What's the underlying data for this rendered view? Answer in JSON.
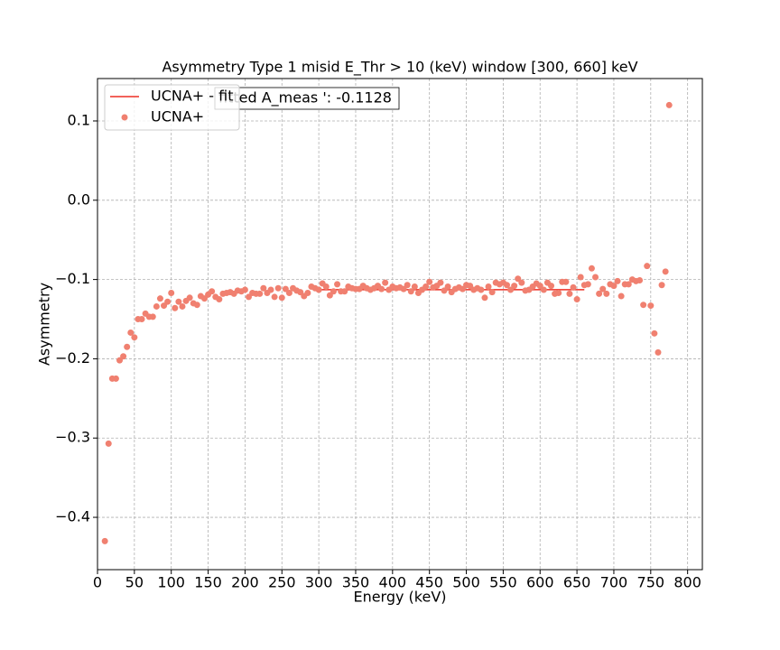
{
  "chart_data": {
    "type": "scatter",
    "title": "Asymmetry Type 1 misid  E_Thr > 10 (keV) window [300, 660] keV",
    "xlabel": "Energy (keV)",
    "ylabel": "Asymmetry",
    "annotation": "fitted A_meas ': -0.1128",
    "xlim": [
      0,
      820
    ],
    "ylim": [
      -0.466,
      0.1535
    ],
    "xticks": [
      0,
      50,
      100,
      150,
      200,
      250,
      300,
      350,
      400,
      450,
      500,
      550,
      600,
      650,
      700,
      750,
      800
    ],
    "yticks": [
      0.1,
      {
        "value": 0.0,
        "label": "0.0"
      },
      {
        "value": -0.1,
        "label": "−0.1"
      },
      {
        "value": -0.2,
        "label": "−0.2"
      },
      {
        "value": -0.3,
        "label": "−0.3"
      },
      {
        "value": -0.4,
        "label": "−0.4"
      }
    ],
    "grid": true,
    "legend": "upper left",
    "series": [
      {
        "name": "UCNA+ - fit",
        "type": "line",
        "color": "#ee2f24",
        "x": [
          300,
          660
        ],
        "values": [
          -0.1128,
          -0.1128
        ]
      },
      {
        "name": "UCNA+",
        "type": "scatter",
        "color": "#f08070",
        "x": [
          10,
          15,
          20,
          25,
          30,
          35,
          40,
          45,
          50,
          55,
          60,
          65,
          70,
          75,
          80,
          85,
          90,
          95,
          100,
          105,
          110,
          115,
          120,
          125,
          130,
          135,
          140,
          145,
          150,
          155,
          160,
          165,
          170,
          175,
          180,
          185,
          190,
          195,
          200,
          205,
          210,
          215,
          220,
          225,
          230,
          235,
          240,
          245,
          250,
          255,
          260,
          265,
          270,
          275,
          280,
          285,
          290,
          295,
          300,
          305,
          310,
          315,
          320,
          325,
          330,
          335,
          340,
          345,
          350,
          355,
          360,
          365,
          370,
          375,
          380,
          385,
          390,
          395,
          400,
          405,
          410,
          415,
          420,
          425,
          430,
          435,
          440,
          445,
          450,
          455,
          460,
          465,
          470,
          475,
          480,
          485,
          490,
          495,
          500,
          505,
          510,
          515,
          520,
          525,
          530,
          535,
          540,
          545,
          550,
          555,
          560,
          565,
          570,
          575,
          580,
          585,
          590,
          595,
          600,
          605,
          610,
          615,
          620,
          625,
          630,
          635,
          640,
          645,
          650,
          655,
          660,
          665,
          670,
          675,
          680,
          685,
          690,
          695,
          700,
          705,
          710,
          715,
          720,
          725,
          730,
          735,
          740,
          745,
          750,
          755,
          760,
          765,
          770,
          775
        ],
        "values": [
          -0.43,
          -0.307,
          -0.225,
          -0.225,
          -0.202,
          -0.197,
          -0.185,
          -0.167,
          -0.173,
          -0.15,
          -0.15,
          -0.143,
          -0.147,
          -0.147,
          -0.134,
          -0.124,
          -0.133,
          -0.128,
          -0.117,
          -0.136,
          -0.128,
          -0.134,
          -0.127,
          -0.123,
          -0.13,
          -0.132,
          -0.121,
          -0.124,
          -0.119,
          -0.115,
          -0.122,
          -0.125,
          -0.118,
          -0.117,
          -0.116,
          -0.118,
          -0.114,
          -0.115,
          -0.113,
          -0.122,
          -0.117,
          -0.118,
          -0.118,
          -0.111,
          -0.117,
          -0.113,
          -0.122,
          -0.111,
          -0.123,
          -0.112,
          -0.117,
          -0.111,
          -0.114,
          -0.116,
          -0.121,
          -0.117,
          -0.109,
          -0.111,
          -0.113,
          -0.105,
          -0.109,
          -0.12,
          -0.115,
          -0.106,
          -0.115,
          -0.115,
          -0.109,
          -0.111,
          -0.112,
          -0.112,
          -0.108,
          -0.111,
          -0.113,
          -0.111,
          -0.108,
          -0.112,
          -0.104,
          -0.113,
          -0.109,
          -0.111,
          -0.11,
          -0.112,
          -0.107,
          -0.115,
          -0.109,
          -0.117,
          -0.113,
          -0.109,
          -0.103,
          -0.11,
          -0.108,
          -0.104,
          -0.114,
          -0.109,
          -0.116,
          -0.112,
          -0.11,
          -0.112,
          -0.107,
          -0.108,
          -0.113,
          -0.111,
          -0.113,
          -0.123,
          -0.109,
          -0.116,
          -0.104,
          -0.106,
          -0.104,
          -0.107,
          -0.113,
          -0.108,
          -0.099,
          -0.104,
          -0.114,
          -0.113,
          -0.109,
          -0.105,
          -0.108,
          -0.113,
          -0.104,
          -0.108,
          -0.118,
          -0.117,
          -0.103,
          -0.103,
          -0.118,
          -0.11,
          -0.125,
          -0.097,
          -0.107,
          -0.106,
          -0.086,
          -0.097,
          -0.118,
          -0.112,
          -0.118,
          -0.106,
          -0.108,
          -0.102,
          -0.121,
          -0.106,
          -0.106,
          -0.1,
          -0.102,
          -0.101,
          -0.132,
          -0.083,
          -0.133,
          -0.168,
          -0.192,
          -0.107,
          -0.09,
          0.12
        ]
      }
    ]
  }
}
